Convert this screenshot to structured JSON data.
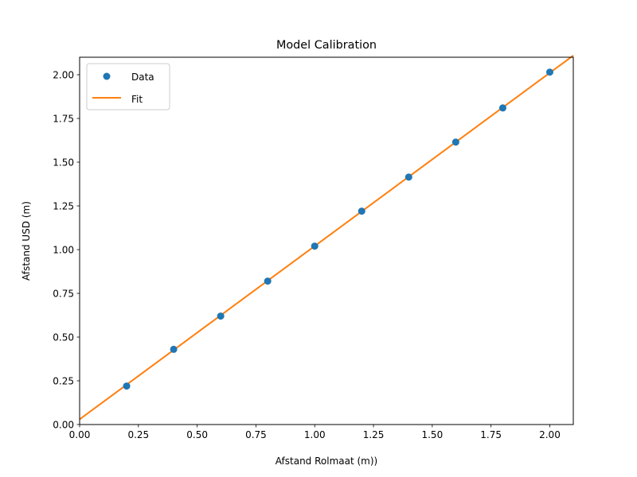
{
  "chart_data": {
    "type": "scatter",
    "title": "Model Calibration",
    "xlabel": "Afstand Rolmaat (m))",
    "ylabel": "Afstand USD (m)",
    "xlim": [
      0.0,
      2.1
    ],
    "ylim": [
      0.0,
      2.1
    ],
    "xticks": [
      "0.00",
      "0.25",
      "0.50",
      "0.75",
      "1.00",
      "1.25",
      "1.50",
      "1.75",
      "2.00"
    ],
    "yticks": [
      "0.00",
      "0.25",
      "0.50",
      "0.75",
      "1.00",
      "1.25",
      "1.50",
      "1.75",
      "2.00"
    ],
    "grid": false,
    "legend_position": "top-left",
    "series": [
      {
        "name": "Data",
        "kind": "scatter",
        "color": "#1f77b4",
        "x": [
          0.2,
          0.4,
          0.6,
          0.8,
          1.0,
          1.2,
          1.4,
          1.6,
          1.8,
          2.0
        ],
        "y": [
          0.22,
          0.43,
          0.62,
          0.82,
          1.02,
          1.22,
          1.415,
          1.615,
          1.81,
          2.015
        ]
      },
      {
        "name": "Fit",
        "kind": "line",
        "color": "#ff7f0e",
        "x": [
          0.0,
          2.1
        ],
        "y": [
          0.03,
          2.11
        ]
      }
    ]
  }
}
